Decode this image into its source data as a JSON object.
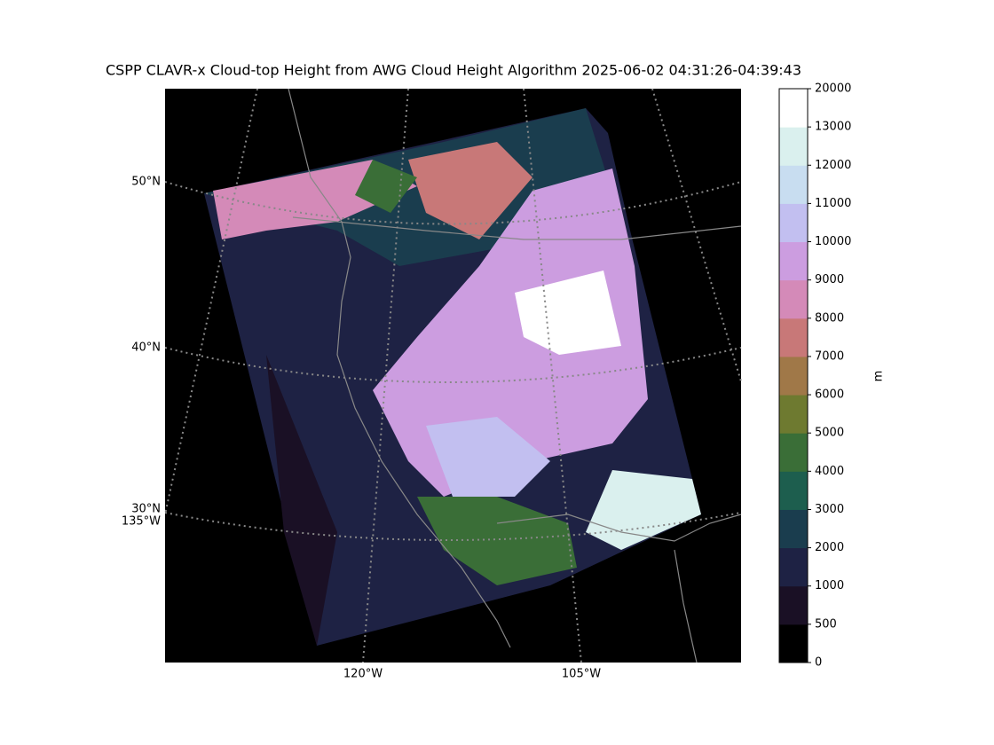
{
  "title": "CSPP CLAVR-x Cloud-top Height from AWG Cloud Height Algorithm 2025-06-02 04:31:26-04:39:43",
  "map": {
    "lat_labels": [
      "50°N",
      "40°N",
      "30°N"
    ],
    "lon_labels": [
      "135°W",
      "120°W",
      "105°W"
    ]
  },
  "colorbar": {
    "label": "m",
    "ticks": [
      0,
      500,
      1000,
      2000,
      3000,
      4000,
      5000,
      6000,
      7000,
      8000,
      9000,
      10000,
      11000,
      12000,
      13000,
      20000
    ],
    "colors": [
      "#000000",
      "#1a1025",
      "#1e2244",
      "#1a3d4e",
      "#1d5e4e",
      "#3a6e37",
      "#6e7a30",
      "#a07848",
      "#c87878",
      "#d48ab8",
      "#cc9de0",
      "#c2bff0",
      "#c8ddf0",
      "#daf0ee",
      "#ffffff"
    ]
  }
}
